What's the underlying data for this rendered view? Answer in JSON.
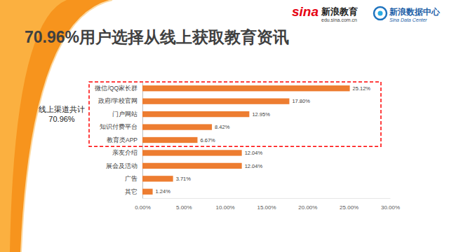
{
  "page": {
    "logo_texts": [
      "sina",
      "新浪教育",
      "edu.sina.com.cn",
      "新浪数据中心",
      "Sina Data Center"
    ]
  },
  "chart_data": {
    "type": "bar",
    "orientation": "horizontal",
    "title": "70.96%用户选择从线上获取教育资讯",
    "categories": [
      "微信/QQ家长群",
      "政府/学校官网",
      "门户网站",
      "知识付费平台",
      "教育类APP",
      "亲友介绍",
      "展会及活动",
      "广告",
      "其它"
    ],
    "values": [
      25.12,
      17.8,
      12.95,
      8.42,
      6.67,
      12.04,
      12.04,
      3.71,
      1.24
    ],
    "value_labels": [
      "25.12%",
      "17.80%",
      "12.95%",
      "8.42%",
      "6.67%",
      "12.04%",
      "12.04%",
      "3.71%",
      "1.24%"
    ],
    "data_labels": true,
    "color": "#ED7D31",
    "xlim": [
      0,
      30
    ],
    "xticks": [
      {
        "value": 0,
        "label": "0.00%"
      },
      {
        "value": 5,
        "label": "5.00%"
      },
      {
        "value": 10,
        "label": "10.00%"
      },
      {
        "value": 15,
        "label": "15.00%"
      },
      {
        "value": 20,
        "label": "20.00%"
      },
      {
        "value": 25,
        "label": "25.00%"
      },
      {
        "value": 30,
        "label": "30.00%"
      }
    ],
    "grid": false,
    "annotations": [
      "线上渠道共计",
      "70.96%"
    ]
  }
}
